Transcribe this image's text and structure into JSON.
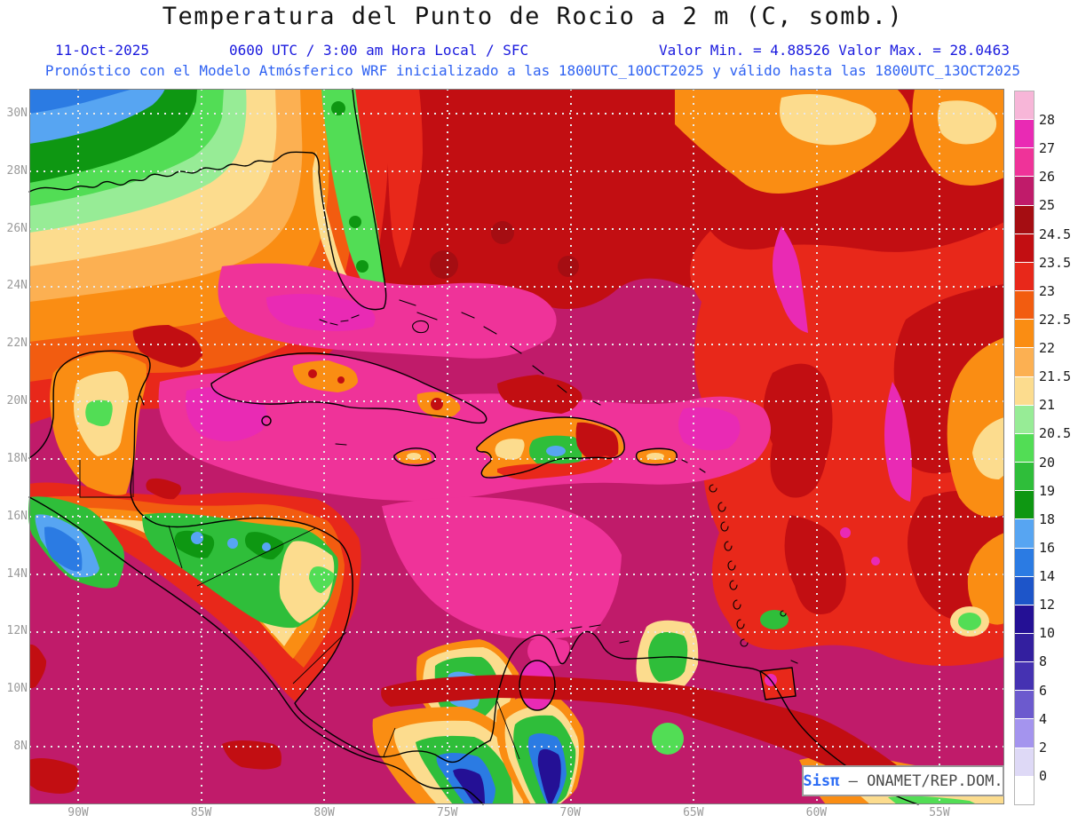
{
  "header": {
    "title": "Temperatura del Punto de Rocio a 2 m (C, somb.)",
    "title_color": "#141414",
    "date": "11-Oct-2025",
    "time": "0600 UTC / 3:00 am Hora Local / SFC",
    "minmax": "Valor Min. = 4.88526  Valor Max. = 28.0463",
    "line2_color": "#1a1ade",
    "line3": "Pronóstico con el Modelo Atmósferico WRF inicializado a las 1800UTC_10OCT2025 y válido hasta las  1800UTC_13OCT2025",
    "line3_color": "#2f62f2"
  },
  "map": {
    "lat_labels": [
      "30N",
      "28N",
      "26N",
      "24N",
      "22N",
      "20N",
      "18N",
      "16N",
      "14N",
      "12N",
      "10N",
      "8N"
    ],
    "lon_labels": [
      "90W",
      "85W",
      "80W",
      "75W",
      "70W",
      "65W",
      "60W",
      "55W"
    ],
    "attribution": {
      "brand": "Sisπ",
      "source": " – ONAMET/REP.DOM.",
      "brand_color": "#2b6cf5",
      "source_color": "#4a4a4a"
    }
  },
  "colorbar": {
    "blocks": [
      {
        "color": "#f7b6d8",
        "label": "28"
      },
      {
        "color": "#e92ab4",
        "label": "27"
      },
      {
        "color": "#ef3399",
        "label": "26"
      },
      {
        "color": "#c01b6a",
        "label": "25"
      },
      {
        "color": "#a50d12",
        "label": "24.5"
      },
      {
        "color": "#c20e12",
        "label": "23.5"
      },
      {
        "color": "#e8281a",
        "label": "23"
      },
      {
        "color": "#f25c10",
        "label": "22.5"
      },
      {
        "color": "#fa8d13",
        "label": "22"
      },
      {
        "color": "#fcb052",
        "label": "21.5"
      },
      {
        "color": "#fcdc8e",
        "label": "21"
      },
      {
        "color": "#97ec96",
        "label": "20.5"
      },
      {
        "color": "#52dd55",
        "label": "20"
      },
      {
        "color": "#2fbe3a",
        "label": "19"
      },
      {
        "color": "#0e9712",
        "label": "18"
      },
      {
        "color": "#57a5f2",
        "label": "16"
      },
      {
        "color": "#2b7be3",
        "label": "14"
      },
      {
        "color": "#1d55c9",
        "label": "12"
      },
      {
        "color": "#241095",
        "label": "10"
      },
      {
        "color": "#331f9f",
        "label": "8"
      },
      {
        "color": "#4532b2",
        "label": "6"
      },
      {
        "color": "#6c5ace",
        "label": "4"
      },
      {
        "color": "#a494ee",
        "label": "2"
      },
      {
        "color": "#ded9f6",
        "label": "0"
      },
      {
        "color": "#ffffff",
        "label": ""
      }
    ]
  },
  "palette": {
    "p28": "#f7b6d8",
    "m27": "#e92ab4",
    "p26": "#ef3399",
    "m25": "#c01b6a",
    "r245": "#a50d12",
    "r24": "#c20e12",
    "r23": "#e8281a",
    "o225": "#f25c10",
    "o22": "#fa8d13",
    "o215": "#fcb052",
    "y21": "#fcdc8e",
    "g205": "#97ec96",
    "g20": "#52dd55",
    "g19": "#2fbe3a",
    "g18": "#0e9712",
    "b16": "#57a5f2",
    "b14": "#2b7be3",
    "b12": "#1d55c9",
    "n10": "#241095",
    "coast": "#000000",
    "grid": "#e8e8e8",
    "frame": "#7f7f7f"
  },
  "chart_data": {
    "type": "heatmap",
    "variable": "Temperatura del Punto de Rocio a 2 m",
    "units": "C",
    "valor_min": 4.88526,
    "valor_max": 28.0463,
    "valid_date": "11-Oct-2025",
    "valid_time": "0600 UTC / 3:00 am Hora Local / SFC",
    "model_run": "1800UTC_10OCT2025",
    "valid_until": "1800UTC_13OCT2025",
    "levels": [
      0,
      2,
      4,
      6,
      8,
      10,
      12,
      14,
      16,
      18,
      19,
      20,
      20.5,
      21,
      21.5,
      22,
      22.5,
      23,
      23.5,
      24.5,
      25,
      26,
      27,
      28
    ],
    "lat_ticks": [
      "8N",
      "10N",
      "12N",
      "14N",
      "16N",
      "18N",
      "20N",
      "22N",
      "24N",
      "26N",
      "28N",
      "30N"
    ],
    "lon_ticks": [
      "90W",
      "85W",
      "80W",
      "75W",
      "70W",
      "65W",
      "60W",
      "55W"
    ],
    "legend_position": "right",
    "grid": true
  }
}
